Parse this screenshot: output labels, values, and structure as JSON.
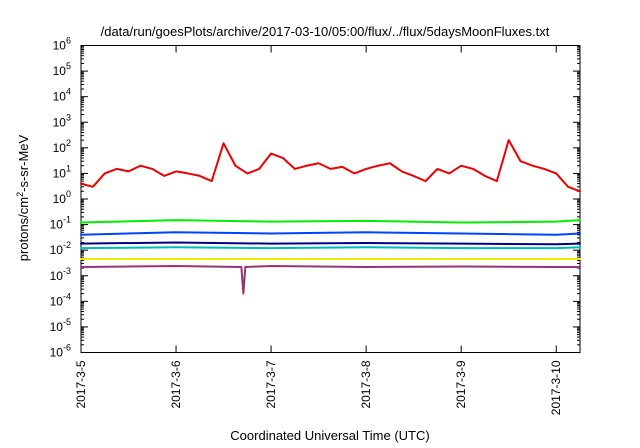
{
  "chart_data": {
    "type": "line",
    "title": "/data/run/goesPlots/archive/2017-03-10/05:00/flux/../flux/5daysMoonFluxes.txt",
    "xlabel": "Coordinated Universal Time (UTC)",
    "ylabel": "protons/cm2-s-sr-MeV",
    "ylabel_parts": {
      "pre": "protons/cm",
      "sup": "2",
      "post": "-s-sr-MeV"
    },
    "yscale": "log",
    "ylim": [
      1e-06,
      1000000.0
    ],
    "xlim": [
      "2017-03-05 00:00",
      "2017-03-10 06:00"
    ],
    "grid": false,
    "legend": "none",
    "x_ticks": [
      {
        "x": "2017-03-05 00:00",
        "label": "2017-3-5"
      },
      {
        "x": "2017-03-06 00:00",
        "label": "2017-3-6"
      },
      {
        "x": "2017-03-07 00:00",
        "label": "2017-3-7"
      },
      {
        "x": "2017-03-08 00:00",
        "label": "2017-3-8"
      },
      {
        "x": "2017-03-09 00:00",
        "label": "2017-3-9"
      },
      {
        "x": "2017-03-10 00:00",
        "label": "2017-3-10"
      }
    ],
    "y_ticks": [
      {
        "exp": "-6",
        "value": 1e-06
      },
      {
        "exp": "-5",
        "value": 1e-05
      },
      {
        "exp": "-4",
        "value": 0.0001
      },
      {
        "exp": "-3",
        "value": 0.001
      },
      {
        "exp": "-2",
        "value": 0.01
      },
      {
        "exp": "-1",
        "value": 0.1
      },
      {
        "exp": "0",
        "value": 1
      },
      {
        "exp": "1",
        "value": 10.0
      },
      {
        "exp": "2",
        "value": 100.0
      },
      {
        "exp": "3",
        "value": 1000.0
      },
      {
        "exp": "4",
        "value": 10000.0
      },
      {
        "exp": "5",
        "value": 100000.0
      },
      {
        "exp": "6",
        "value": 1000000.0
      }
    ],
    "series": [
      {
        "color": "#ee0000",
        "x": [
          "2017-03-05 00:00",
          "2017-03-05 03:00",
          "2017-03-05 06:00",
          "2017-03-05 09:00",
          "2017-03-05 12:00",
          "2017-03-05 15:00",
          "2017-03-05 18:00",
          "2017-03-05 21:00",
          "2017-03-06 00:00",
          "2017-03-06 03:00",
          "2017-03-06 06:00",
          "2017-03-06 09:00",
          "2017-03-06 12:00",
          "2017-03-06 15:00",
          "2017-03-06 18:00",
          "2017-03-06 21:00",
          "2017-03-07 00:00",
          "2017-03-07 03:00",
          "2017-03-07 06:00",
          "2017-03-07 09:00",
          "2017-03-07 12:00",
          "2017-03-07 15:00",
          "2017-03-07 18:00",
          "2017-03-07 21:00",
          "2017-03-08 00:00",
          "2017-03-08 03:00",
          "2017-03-08 06:00",
          "2017-03-08 09:00",
          "2017-03-08 12:00",
          "2017-03-08 15:00",
          "2017-03-08 18:00",
          "2017-03-08 21:00",
          "2017-03-09 00:00",
          "2017-03-09 03:00",
          "2017-03-09 06:00",
          "2017-03-09 09:00",
          "2017-03-09 12:00",
          "2017-03-09 15:00",
          "2017-03-09 18:00",
          "2017-03-09 21:00",
          "2017-03-10 00:00",
          "2017-03-10 03:00",
          "2017-03-10 06:00"
        ],
        "y": [
          4,
          3,
          10,
          15,
          12,
          20,
          15,
          8,
          12,
          10,
          8,
          5,
          150,
          20,
          10,
          15,
          60,
          40,
          15,
          20,
          25,
          15,
          18,
          10,
          15,
          20,
          25,
          12,
          8,
          5,
          15,
          10,
          20,
          15,
          8,
          5,
          200,
          30,
          20,
          15,
          10,
          3,
          2
        ]
      },
      {
        "color": "#00ee00",
        "x": [
          "2017-03-05 00:00",
          "2017-03-06 00:00",
          "2017-03-07 00:00",
          "2017-03-08 00:00",
          "2017-03-09 00:00",
          "2017-03-10 00:00",
          "2017-03-10 06:00"
        ],
        "y": [
          0.12,
          0.15,
          0.13,
          0.14,
          0.12,
          0.13,
          0.15
        ]
      },
      {
        "color": "#0044ff",
        "x": [
          "2017-03-05 00:00",
          "2017-03-06 00:00",
          "2017-03-07 00:00",
          "2017-03-08 00:00",
          "2017-03-09 00:00",
          "2017-03-10 00:00",
          "2017-03-10 06:00"
        ],
        "y": [
          0.04,
          0.05,
          0.045,
          0.05,
          0.045,
          0.04,
          0.045
        ]
      },
      {
        "color": "#00bbbb",
        "x": [
          "2017-03-05 00:00",
          "2017-03-06 00:00",
          "2017-03-07 00:00",
          "2017-03-08 00:00",
          "2017-03-09 00:00",
          "2017-03-10 00:00",
          "2017-03-10 06:00"
        ],
        "y": [
          0.012,
          0.013,
          0.012,
          0.013,
          0.012,
          0.012,
          0.013
        ]
      },
      {
        "color": "#000088",
        "x": [
          "2017-03-05 00:00",
          "2017-03-06 00:00",
          "2017-03-07 00:00",
          "2017-03-08 00:00",
          "2017-03-09 00:00",
          "2017-03-10 00:00",
          "2017-03-10 06:00"
        ],
        "y": [
          0.018,
          0.02,
          0.018,
          0.019,
          0.018,
          0.017,
          0.018
        ]
      },
      {
        "color": "#eeee00",
        "x": [
          "2017-03-05 00:00",
          "2017-03-06 00:00",
          "2017-03-07 00:00",
          "2017-03-08 00:00",
          "2017-03-09 00:00",
          "2017-03-10 00:00",
          "2017-03-10 06:00"
        ],
        "y": [
          0.0045,
          0.0045,
          0.0045,
          0.0045,
          0.0045,
          0.0045,
          0.0045
        ]
      },
      {
        "color": "#993377",
        "x": [
          "2017-03-05 00:00",
          "2017-03-06 00:00",
          "2017-03-06 16:30",
          "2017-03-06 17:00",
          "2017-03-06 17:30",
          "2017-03-07 00:00",
          "2017-03-08 00:00",
          "2017-03-09 00:00",
          "2017-03-10 00:00",
          "2017-03-10 06:00"
        ],
        "y": [
          0.0022,
          0.0024,
          0.0022,
          0.0002,
          0.0022,
          0.0024,
          0.0022,
          0.0023,
          0.0022,
          0.0022
        ]
      }
    ]
  }
}
